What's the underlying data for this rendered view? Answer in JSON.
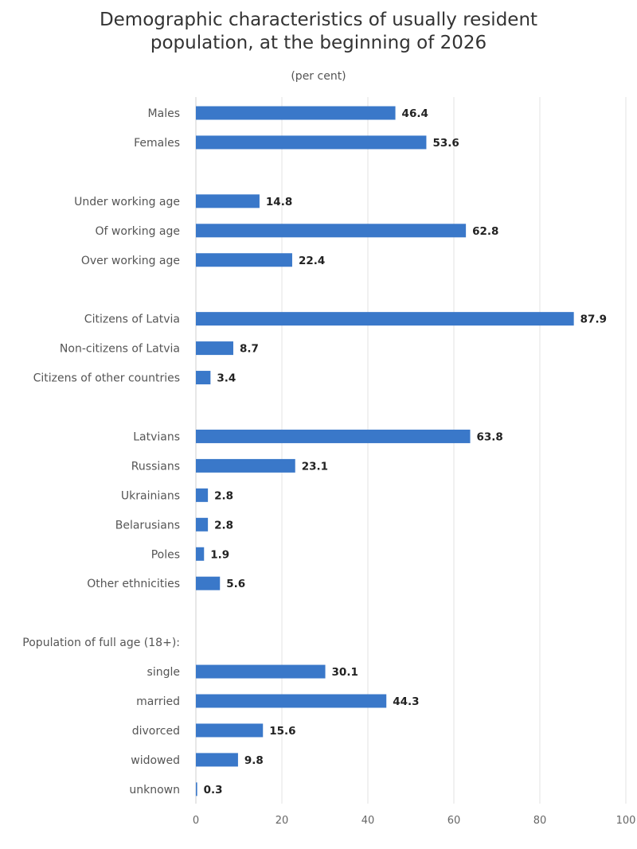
{
  "chart_data": {
    "type": "bar",
    "orientation": "horizontal",
    "title": "Demographic characteristics of usually resident population, at the beginning of 2026",
    "title_lines": [
      "Demographic characteristics of usually resident",
      "population, at the beginning of 2026"
    ],
    "subtitle": "(per cent)",
    "xlim": [
      0,
      100
    ],
    "xticks": [
      0,
      20,
      40,
      60,
      80,
      100
    ],
    "grid": true,
    "bar_color": "#3a78c9",
    "categories": [
      {
        "label": "Males",
        "value": 46.4
      },
      {
        "label": "Females",
        "value": 53.6
      },
      {
        "label": "",
        "value": null
      },
      {
        "label": "Under working age",
        "value": 14.8
      },
      {
        "label": "Of working age",
        "value": 62.8
      },
      {
        "label": "Over working age",
        "value": 22.4
      },
      {
        "label": "",
        "value": null
      },
      {
        "label": "Citizens of Latvia",
        "value": 87.9
      },
      {
        "label": "Non-citizens of Latvia",
        "value": 8.7
      },
      {
        "label": "Citizens of other countries",
        "value": 3.4
      },
      {
        "label": "",
        "value": null
      },
      {
        "label": "Latvians",
        "value": 63.8
      },
      {
        "label": "Russians",
        "value": 23.1
      },
      {
        "label": "Ukrainians",
        "value": 2.8
      },
      {
        "label": "Belarusians",
        "value": 2.8
      },
      {
        "label": "Poles",
        "value": 1.9
      },
      {
        "label": "Other ethnicities",
        "value": 5.6
      },
      {
        "label": "",
        "value": null
      },
      {
        "label": "Population of full age (18+):",
        "value": null
      },
      {
        "label": "single",
        "value": 30.1
      },
      {
        "label": "married",
        "value": 44.3
      },
      {
        "label": "divorced",
        "value": 15.6
      },
      {
        "label": "widowed",
        "value": 9.8
      },
      {
        "label": "unknown",
        "value": 0.3
      }
    ]
  }
}
